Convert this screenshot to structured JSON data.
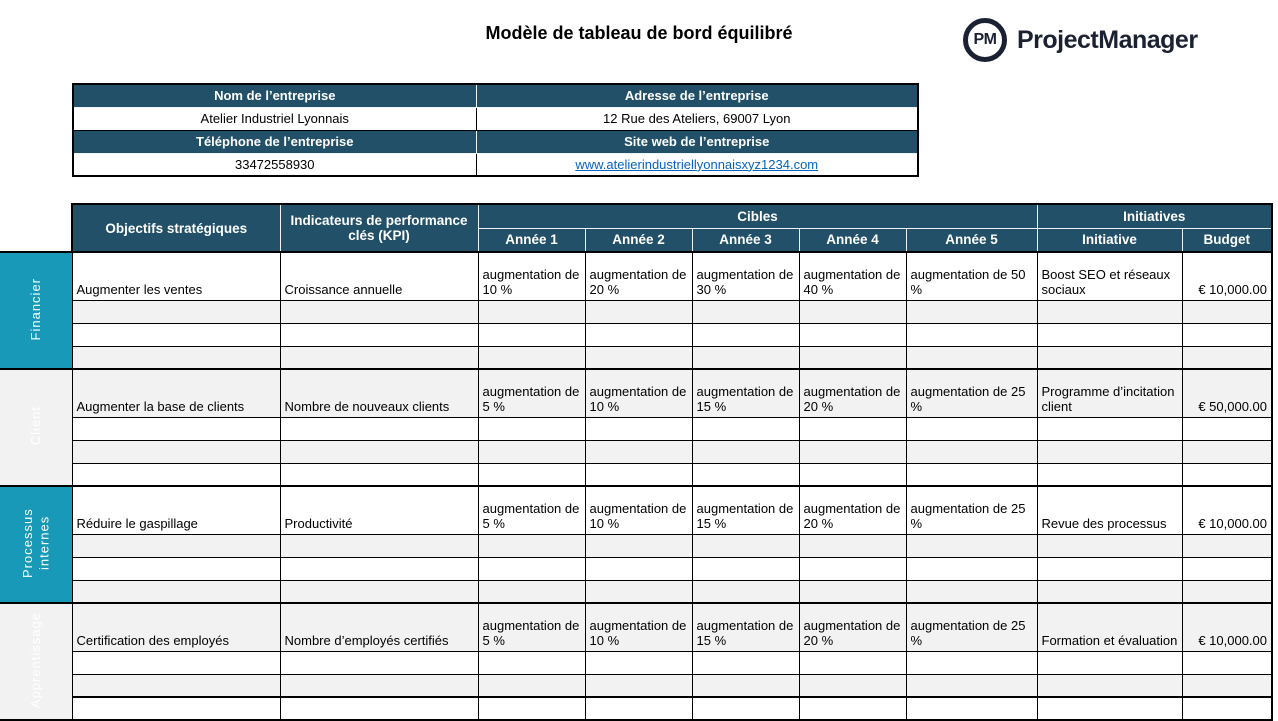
{
  "page_title": "Modèle de tableau de bord équilibré",
  "logo": {
    "icon": "pm-circle-icon",
    "icon_text": "PM",
    "text": "ProjectManager"
  },
  "company": {
    "header_name": "Nom de l’entreprise",
    "header_address": "Adresse de l’entreprise",
    "name": "Atelier Industriel Lyonnais",
    "address": "12 Rue des Ateliers, 69007 Lyon",
    "header_phone": "Téléphone de l’entreprise",
    "header_website": "Site web de l’entreprise",
    "phone": "33472558930",
    "website": "www.atelierindustriellyonnaisxyz1234.com"
  },
  "scorecard": {
    "header": {
      "objectives": "Objectifs stratégiques",
      "kpi": "Indicateurs de performance clés (KPI)",
      "targets_group": "Cibles",
      "years": [
        "Année 1",
        "Année 2",
        "Année 3",
        "Année 4",
        "Année 5"
      ],
      "initiatives_group": "Initiatives",
      "initiative": "Initiative",
      "budget": "Budget"
    },
    "sections": [
      {
        "label": "Financier",
        "objective": "Augmenter les ventes",
        "kpi": "Croissance annuelle",
        "targets": [
          "augmentation de 10 %",
          "augmentation de 20 %",
          "augmentation de 30 %",
          "augmentation de 40 %",
          "augmentation de 50 %"
        ],
        "initiative": "Boost SEO et réseaux sociaux",
        "budget": "€ 10,000.00",
        "empty_rows": 3
      },
      {
        "label": "Client",
        "objective": "Augmenter la base de clients",
        "kpi": "Nombre de nouveaux clients",
        "targets": [
          "augmentation de 5 %",
          "augmentation de 10 %",
          "augmentation de 15 %",
          "augmentation de 20 %",
          "augmentation de 25 %"
        ],
        "initiative": "Programme d’incitation client",
        "budget": "€ 50,000.00",
        "empty_rows": 3
      },
      {
        "label": "Processus internes",
        "objective": "Réduire le gaspillage",
        "kpi": "Productivité",
        "targets": [
          "augmentation de 5 %",
          "augmentation de 10 %",
          "augmentation de 15 %",
          "augmentation de 20 %",
          "augmentation de 25 %"
        ],
        "initiative": "Revue des processus",
        "budget": "€ 10,000.00",
        "empty_rows": 3
      },
      {
        "label": "Apprentissage",
        "objective": "Certification des employés",
        "kpi": "Nombre d’employés certifiés",
        "targets": [
          "augmentation de 5 %",
          "augmentation de 10 %",
          "augmentation de 15 %",
          "augmentation de 20 %",
          "augmentation de 25 %"
        ],
        "initiative": "Formation et évaluation",
        "budget": "€ 10,000.00",
        "empty_rows": 3
      }
    ]
  },
  "colors": {
    "header_blue": "#215068",
    "accent_teal": "#1899b8",
    "row_alt_gray": "#f2f2f2",
    "link_blue": "#0563c1",
    "logo_navy": "#1b2133",
    "border_black": "#000000"
  }
}
